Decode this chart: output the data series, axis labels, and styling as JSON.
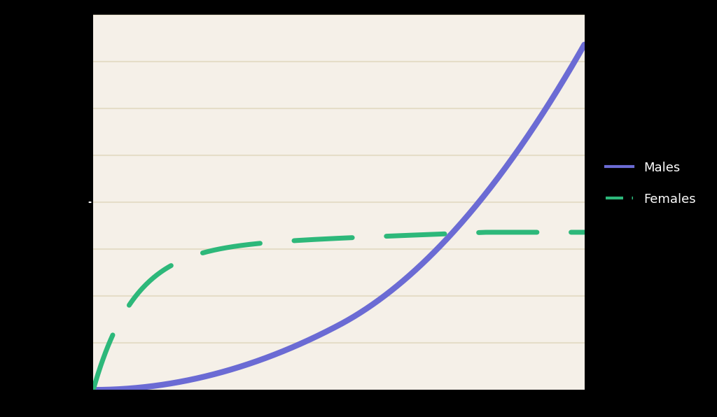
{
  "background_color": "#f5f0e8",
  "outer_background": "#000000",
  "plot_area_color": "#f5f0e8",
  "male_color": "#6b6bd4",
  "female_color": "#2db87a",
  "male_linewidth": 6,
  "female_linewidth": 5,
  "female_dash": [
    12,
    7
  ],
  "x_min": 0,
  "x_max": 10,
  "y_min": 0,
  "y_max": 10,
  "grid_color": "#e5ddc8",
  "grid_linewidth": 1.5,
  "n_gridlines": 8,
  "legend_male_label": "Males",
  "legend_female_label": "Females",
  "legend_fontsize": 13
}
